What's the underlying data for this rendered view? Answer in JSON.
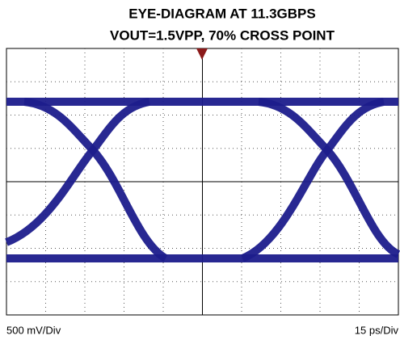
{
  "chart_data": {
    "type": "eye",
    "title": "EYE-DIAGRAM AT 11.3GBPS",
    "subtitle": "VOUT=1.5VPP, 70% CROSS POINT",
    "ylabel": "500 mV/Div",
    "xlabel": "15 ps/Div"
  }
}
